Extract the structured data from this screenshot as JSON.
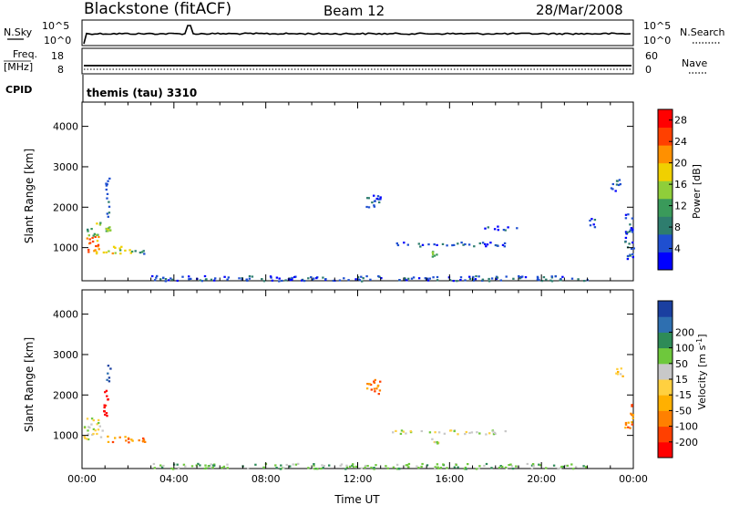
{
  "header": {
    "title": "Blackstone (fitACF)",
    "beam": "Beam 12",
    "date": "28/Mar/2008"
  },
  "param_panels": {
    "nsky": {
      "left_label": "N.Sky",
      "left_ticks": [
        "10^5",
        "10^0"
      ],
      "right_label": "N.Search",
      "right_ticks": [
        "10^5",
        "10^0"
      ]
    },
    "freq": {
      "left_label_line1": "Freq.",
      "left_label_line2": "[MHz]",
      "left_ticks": [
        "18",
        "8"
      ],
      "right_label": "Nave",
      "right_ticks": [
        "60",
        "0"
      ]
    },
    "cpid": {
      "label": "CPID",
      "value": "themis (tau) 3310"
    }
  },
  "colors": {
    "power": [
      "#0000ff",
      "#1f4fd0",
      "#2e7d6e",
      "#3a9a5a",
      "#8fce3a",
      "#f0d000",
      "#ff9000",
      "#ff4000",
      "#ff0000"
    ],
    "velocity": [
      "#ff0000",
      "#ff4000",
      "#ff8000",
      "#ffb000",
      "#ffd040",
      "#c8c8c8",
      "#6ec83c",
      "#2e8b57",
      "#2e6fb0",
      "#1a3fa0"
    ]
  },
  "chart_data": [
    {
      "type": "heatmap",
      "name": "power",
      "ylabel": "Slant Range [km]",
      "xlabel": "",
      "yticks": [
        "1000",
        "2000",
        "3000",
        "4000"
      ],
      "ytick_values": [
        1000,
        2000,
        3000,
        4000
      ],
      "ylim": [
        180,
        4600
      ],
      "xlim": [
        0,
        24
      ],
      "colorbar": {
        "label": "Power [dB]",
        "ticks": [
          "4",
          "8",
          "12",
          "16",
          "20",
          "24",
          "28"
        ],
        "tick_values": [
          4,
          8,
          12,
          16,
          20,
          24,
          28
        ],
        "range": [
          0,
          30
        ]
      },
      "regions": [
        {
          "t": [
            0.05,
            0.7
          ],
          "r": [
            900,
            1300
          ],
          "level": 24
        },
        {
          "t": [
            0.05,
            0.7
          ],
          "r": [
            1300,
            1500
          ],
          "level": 12
        },
        {
          "t": [
            0.5,
            1.3
          ],
          "r": [
            850,
            1000
          ],
          "level": 20
        },
        {
          "t": [
            0.6,
            1.2
          ],
          "r": [
            1350,
            1650
          ],
          "level": 14
        },
        {
          "t": [
            1.3,
            2.1
          ],
          "r": [
            850,
            1050
          ],
          "level": 16
        },
        {
          "t": [
            1.0,
            1.2
          ],
          "r": [
            1700,
            2750
          ],
          "level": 6
        },
        {
          "t": [
            2.1,
            2.7
          ],
          "r": [
            850,
            950
          ],
          "level": 8
        },
        {
          "t": [
            3.0,
            22.0
          ],
          "r": [
            190,
            320
          ],
          "level": 4
        },
        {
          "t": [
            15.2,
            15.5
          ],
          "r": [
            780,
            950
          ],
          "level": 14
        },
        {
          "t": [
            13.4,
            18.5
          ],
          "r": [
            1050,
            1150
          ],
          "level": 4
        },
        {
          "t": [
            12.3,
            13.0
          ],
          "r": [
            2000,
            2400
          ],
          "level": 4
        },
        {
          "t": [
            17.5,
            19.0
          ],
          "r": [
            1450,
            1550
          ],
          "level": 4
        },
        {
          "t": [
            22.0,
            22.3
          ],
          "r": [
            1500,
            1800
          ],
          "level": 4
        },
        {
          "t": [
            23.6,
            24.0
          ],
          "r": [
            700,
            1900
          ],
          "level": 4
        },
        {
          "t": [
            23.0,
            23.4
          ],
          "r": [
            2300,
            2700
          ],
          "level": 4
        }
      ]
    },
    {
      "type": "heatmap",
      "name": "velocity",
      "ylabel": "Slant Range [km]",
      "xlabel": "Time UT",
      "yticks": [
        "1000",
        "2000",
        "3000",
        "4000"
      ],
      "ytick_values": [
        1000,
        2000,
        3000,
        4000
      ],
      "ylim": [
        180,
        4600
      ],
      "xlim": [
        0,
        24
      ],
      "xticks": [
        "00:00",
        "04:00",
        "08:00",
        "12:00",
        "16:00",
        "20:00",
        "00:00"
      ],
      "xtick_values": [
        0,
        4,
        8,
        12,
        16,
        20,
        24
      ],
      "colorbar": {
        "label": "Velocity [m s^-1]",
        "ticks": [
          "-200",
          "-100",
          "-50",
          "-15",
          "15",
          "50",
          "100",
          "200"
        ]
      },
      "regions": [
        {
          "t": [
            0.05,
            0.8
          ],
          "r": [
            1150,
            1450
          ],
          "vel_class": "gray"
        },
        {
          "t": [
            0.05,
            0.9
          ],
          "r": [
            900,
            1150
          ],
          "vel_class": "gray"
        },
        {
          "t": [
            0.9,
            2.2
          ],
          "r": [
            850,
            1000
          ],
          "vel_class": "orange"
        },
        {
          "t": [
            0.9,
            1.2
          ],
          "r": [
            1500,
            2200
          ],
          "vel_class": "red"
        },
        {
          "t": [
            1.0,
            1.2
          ],
          "r": [
            2300,
            2750
          ],
          "vel_class": "blue"
        },
        {
          "t": [
            2.2,
            2.8
          ],
          "r": [
            850,
            950
          ],
          "vel_class": "orange"
        },
        {
          "t": [
            3.0,
            22.0
          ],
          "r": [
            190,
            320
          ],
          "vel_class": "green"
        },
        {
          "t": [
            13.4,
            18.5
          ],
          "r": [
            1050,
            1150
          ],
          "vel_class": "gray"
        },
        {
          "t": [
            15.2,
            15.5
          ],
          "r": [
            800,
            950
          ],
          "vel_class": "gray"
        },
        {
          "t": [
            12.3,
            13.0
          ],
          "r": [
            2000,
            2400
          ],
          "vel_class": "orange"
        },
        {
          "t": [
            23.6,
            24.0
          ],
          "r": [
            1200,
            1800
          ],
          "vel_class": "orange"
        },
        {
          "t": [
            23.2,
            23.5
          ],
          "r": [
            2300,
            2700
          ],
          "vel_class": "yellow"
        }
      ]
    }
  ]
}
